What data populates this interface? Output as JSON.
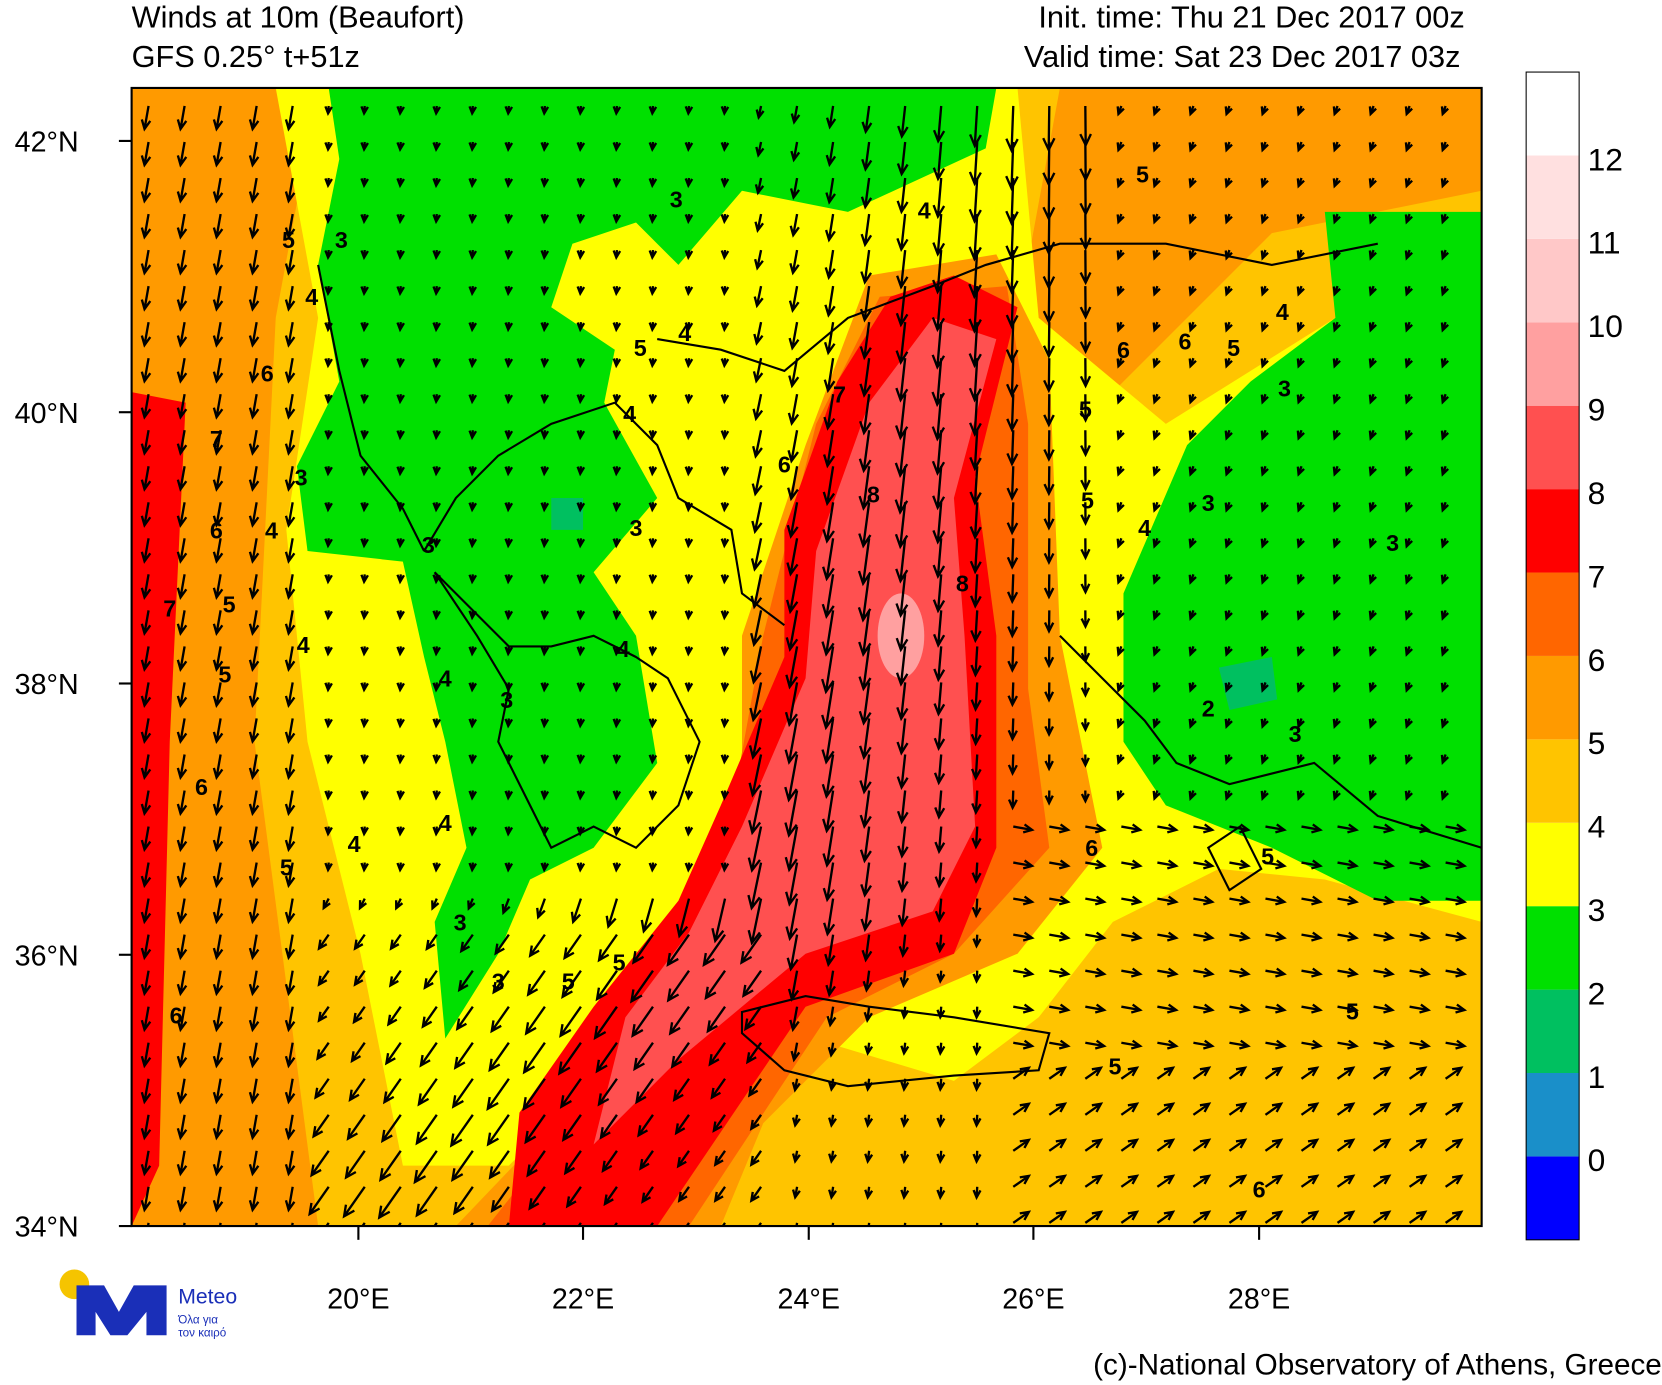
{
  "header": {
    "title": "Winds at 10m (Beaufort)",
    "model": "GFS 0.25° t+51z",
    "init_time": "Init. time: Thu 21 Dec 2017 00z",
    "valid_time": "Valid time: Sat 23 Dec 2017 03z"
  },
  "latitude_labels": [
    "42°N",
    "40°N",
    "38°N",
    "36°N",
    "34°N"
  ],
  "longitude_labels": [
    "20°E",
    "22°E",
    "24°E",
    "26°E",
    "28°E"
  ],
  "colorbar": {
    "labels": [
      0,
      1,
      2,
      3,
      4,
      5,
      6,
      7,
      8,
      9,
      10,
      11,
      12
    ],
    "colors": [
      "#0000ff",
      "#1a8fc9",
      "#00c060",
      "#00e000",
      "#ffff00",
      "#ffc400",
      "#ff9a00",
      "#ff6600",
      "#ff0000",
      "#ff5050",
      "#ffa0a0",
      "#ffc8c8",
      "#ffe0e0",
      "#ffffff"
    ]
  },
  "contour_labels": [
    3,
    5,
    3,
    4,
    6,
    7,
    3,
    6,
    4,
    5,
    7,
    5,
    4,
    6,
    5,
    4,
    4,
    3,
    3,
    4,
    5,
    6,
    4,
    3,
    5,
    6,
    3,
    4,
    5,
    3,
    4,
    7,
    8,
    8,
    6,
    6,
    5,
    5,
    3,
    5,
    4,
    3,
    3,
    2,
    3,
    5,
    4,
    4,
    6,
    5,
    5,
    5,
    6
  ],
  "logo": {
    "name": "Meteo",
    "tagline_1": "Όλα για",
    "tagline_2": "τον καιρό"
  },
  "copyright": "(c)-National Observatory of Athens, Greece"
}
